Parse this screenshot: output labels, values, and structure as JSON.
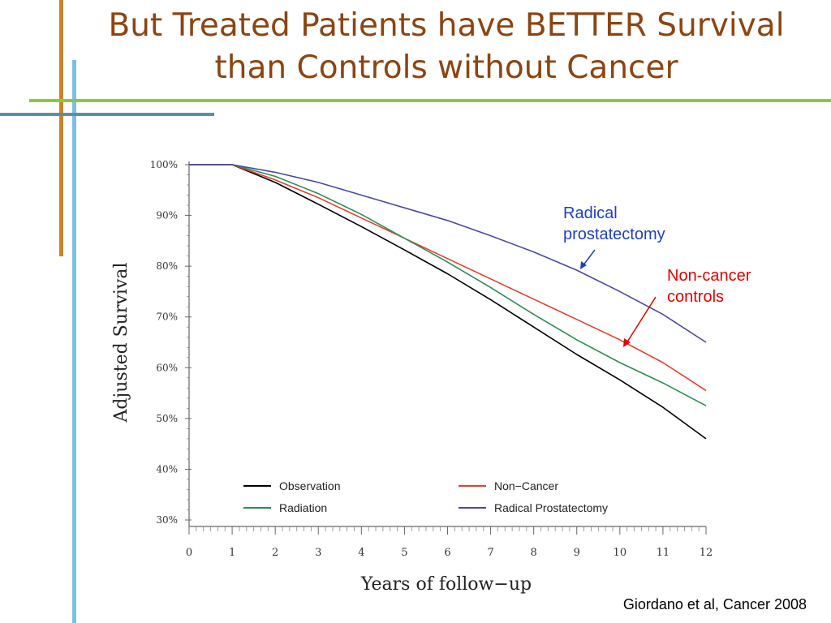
{
  "slide": {
    "title": "But Treated Patients have BETTER Survival than Controls without Cancer",
    "citation": "Giordano et al, Cancer 2008"
  },
  "annotations": {
    "radical": "Radical prostatectomy",
    "noncancer": "Non-cancer controls"
  },
  "colors": {
    "title": "#8b4513",
    "accent_green": "#8dc63f",
    "accent_orange": "#c8842a",
    "accent_blue": "#7fbfe0",
    "accent_teal": "#5b8fa3",
    "observation": "#000000",
    "radiation": "#2e8b57",
    "noncancer": "#e0402f",
    "radical": "#4a4a9c",
    "annotation_blue": "#1f3fbf",
    "annotation_red": "#e00000"
  },
  "chart_data": {
    "type": "line",
    "xlabel": "Years of follow−up",
    "ylabel": "Adjusted Survival",
    "xlim": [
      0,
      12
    ],
    "ylim": [
      30,
      100
    ],
    "xticks": [
      "0",
      "1",
      "2",
      "3",
      "4",
      "5",
      "6",
      "7",
      "8",
      "9",
      "10",
      "11",
      "12"
    ],
    "yticks": [
      "30%",
      "40%",
      "50%",
      "60%",
      "70%",
      "80%",
      "90%",
      "100%"
    ],
    "ytick_values": [
      30,
      40,
      50,
      60,
      70,
      80,
      90,
      100
    ],
    "legend_placement": "bottom inside plot",
    "series": [
      {
        "name": "Observation",
        "color": "#000000",
        "x": [
          0,
          1,
          2,
          3,
          4,
          5,
          6,
          7,
          8,
          9,
          10,
          11,
          12
        ],
        "y": [
          100,
          100,
          96.5,
          92.2,
          87.8,
          83.2,
          78.5,
          73.4,
          68,
          62.6,
          57.6,
          52.2,
          46
        ]
      },
      {
        "name": "Non−Cancer",
        "color": "#e0402f",
        "x": [
          0,
          1,
          2,
          3,
          4,
          5,
          6,
          7,
          8,
          9,
          10,
          11,
          12
        ],
        "y": [
          100,
          100,
          97,
          93.5,
          89.5,
          85.5,
          81.5,
          77.5,
          73.5,
          69.5,
          65.5,
          61,
          55.5
        ]
      },
      {
        "name": "Radiation",
        "color": "#2e8b57",
        "x": [
          0,
          1,
          2,
          3,
          4,
          5,
          6,
          7,
          8,
          9,
          10,
          11,
          12
        ],
        "y": [
          100,
          100,
          97.7,
          94.3,
          90.2,
          85.5,
          80.8,
          75.8,
          70.5,
          65.5,
          61,
          57,
          52.5
        ]
      },
      {
        "name": "Radical Prostatectomy",
        "color": "#4a4a9c",
        "x": [
          0,
          1,
          2,
          3,
          4,
          5,
          6,
          7,
          8,
          9,
          10,
          11,
          12
        ],
        "y": [
          100,
          100,
          98.5,
          96.5,
          94,
          91.5,
          89,
          86,
          82.8,
          79.2,
          75,
          70.5,
          65
        ]
      }
    ]
  }
}
